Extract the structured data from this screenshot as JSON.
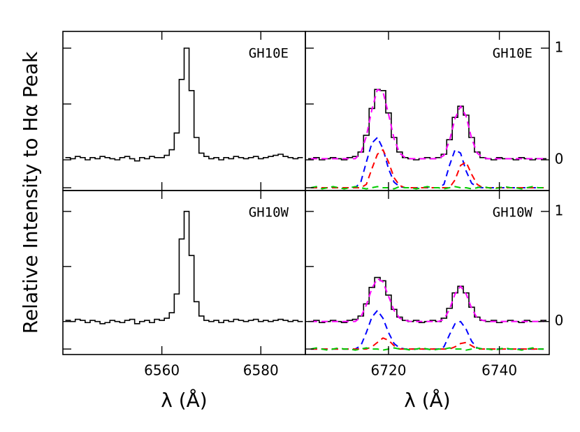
{
  "chart_data": [
    {
      "type": "line",
      "panel_label": "GH10E",
      "ylabel": "Relative Intensity to Hα Peak",
      "xlim": [
        6540,
        6589
      ],
      "xticks": [
        6560,
        6580
      ],
      "ylim": [
        -0.275,
        1.15
      ],
      "yticks": [
        -0.25,
        0,
        0.5,
        1
      ],
      "x": [
        6541,
        6542,
        6543,
        6544,
        6545,
        6546,
        6547,
        6548,
        6549,
        6550,
        6551,
        6552,
        6553,
        6554,
        6555,
        6556,
        6557,
        6558,
        6559,
        6560,
        6561,
        6562,
        6563,
        6564,
        6565,
        6566,
        6567,
        6568,
        6569,
        6570,
        6571,
        6572,
        6573,
        6574,
        6575,
        6576,
        6577,
        6578,
        6579,
        6580,
        6581,
        6582,
        6583,
        6584,
        6585,
        6586,
        6587,
        6588
      ],
      "series": [
        {
          "color": "#000000",
          "style": "step",
          "values": [
            0.02,
            0.01,
            0.03,
            0.02,
            0.0,
            0.02,
            0.01,
            0.03,
            0.02,
            0.01,
            0.0,
            0.02,
            0.03,
            0.01,
            -0.01,
            0.02,
            0.01,
            0.03,
            0.02,
            0.02,
            0.04,
            0.09,
            0.24,
            0.72,
            1.0,
            0.62,
            0.2,
            0.06,
            0.03,
            0.01,
            0.02,
            0.0,
            0.02,
            0.01,
            0.03,
            0.02,
            0.01,
            0.02,
            0.03,
            0.01,
            0.02,
            0.03,
            0.04,
            0.05,
            0.03,
            0.02,
            0.01,
            0.02
          ]
        }
      ]
    },
    {
      "type": "line",
      "panel_label": "GH10E",
      "xlim": [
        6705,
        6749
      ],
      "xticks": [
        6720,
        6740
      ],
      "ylim": [
        -0.275,
        1.15
      ],
      "yticks": [
        -0.25,
        0,
        0.5,
        1
      ],
      "y2lim": [
        -0.275,
        1.15
      ],
      "y2ticks": [
        0,
        1
      ],
      "x": [
        6706,
        6707,
        6708,
        6709,
        6710,
        6711,
        6712,
        6713,
        6714,
        6715,
        6716,
        6717,
        6718,
        6719,
        6720,
        6721,
        6722,
        6723,
        6724,
        6725,
        6726,
        6727,
        6728,
        6729,
        6730,
        6731,
        6732,
        6733,
        6734,
        6735,
        6736,
        6737,
        6738,
        6739,
        6740,
        6741,
        6742,
        6743,
        6744,
        6745,
        6746,
        6747,
        6748
      ],
      "series": [
        {
          "color": "#000000",
          "style": "step",
          "values": [
            0.01,
            0.02,
            0.0,
            0.01,
            0.02,
            0.01,
            0.0,
            0.02,
            0.03,
            0.07,
            0.22,
            0.46,
            0.63,
            0.62,
            0.42,
            0.2,
            0.07,
            0.02,
            0.01,
            0.0,
            0.01,
            0.02,
            0.01,
            0.02,
            0.05,
            0.18,
            0.38,
            0.48,
            0.4,
            0.2,
            0.07,
            0.02,
            0.01,
            0.0,
            0.02,
            0.01,
            0.01,
            0.0,
            0.02,
            0.01,
            0.0,
            0.01,
            0.01
          ]
        },
        {
          "color": "#ff00ff",
          "style": "dashed",
          "values": [
            0.01,
            0.01,
            0.01,
            0.01,
            0.01,
            0.01,
            0.01,
            0.01,
            0.01,
            0.06,
            0.21,
            0.45,
            0.63,
            0.61,
            0.41,
            0.19,
            0.06,
            0.02,
            0.01,
            0.01,
            0.01,
            0.01,
            0.01,
            0.01,
            0.04,
            0.17,
            0.37,
            0.48,
            0.39,
            0.19,
            0.06,
            0.02,
            0.01,
            0.01,
            0.01,
            0.01,
            0.01,
            0.01,
            0.01,
            0.01,
            0.01,
            0.01,
            0.01
          ]
        },
        {
          "color": "#0000ff",
          "style": "dashed",
          "values": [
            -0.25,
            -0.25,
            -0.25,
            -0.25,
            -0.25,
            -0.25,
            -0.25,
            -0.25,
            -0.25,
            -0.2,
            -0.02,
            0.15,
            0.2,
            0.1,
            -0.08,
            -0.2,
            -0.24,
            -0.25,
            -0.25,
            -0.25,
            -0.25,
            -0.25,
            -0.25,
            -0.25,
            -0.22,
            -0.05,
            0.09,
            0.06,
            -0.1,
            -0.21,
            -0.245,
            -0.25,
            -0.25,
            -0.25,
            -0.25,
            -0.25,
            -0.25,
            -0.25,
            -0.25,
            -0.25,
            -0.25,
            -0.25,
            -0.25
          ]
        },
        {
          "color": "#ff0000",
          "style": "dashed",
          "values": [
            -0.25,
            -0.25,
            -0.25,
            -0.25,
            -0.25,
            -0.25,
            -0.25,
            -0.25,
            -0.25,
            -0.25,
            -0.22,
            -0.08,
            0.05,
            0.09,
            -0.02,
            -0.16,
            -0.23,
            -0.25,
            -0.25,
            -0.25,
            -0.25,
            -0.25,
            -0.25,
            -0.25,
            -0.25,
            -0.25,
            -0.18,
            -0.05,
            -0.02,
            -0.13,
            -0.22,
            -0.25,
            -0.25,
            -0.25,
            -0.25,
            -0.25,
            -0.25,
            -0.25,
            -0.25,
            -0.25,
            -0.25,
            -0.25,
            -0.25
          ]
        },
        {
          "color": "#00cc00",
          "style": "dashed",
          "values": [
            -0.25,
            -0.24,
            -0.26,
            -0.25,
            -0.24,
            -0.25,
            -0.26,
            -0.25,
            -0.24,
            -0.25,
            -0.26,
            -0.25,
            -0.24,
            -0.25,
            -0.25,
            -0.26,
            -0.24,
            -0.25,
            -0.25,
            -0.26,
            -0.25,
            -0.24,
            -0.25,
            -0.25,
            -0.26,
            -0.25,
            -0.24,
            -0.25,
            -0.25,
            -0.26,
            -0.25,
            -0.24,
            -0.25,
            -0.26,
            -0.25,
            -0.24,
            -0.25,
            -0.25,
            -0.26,
            -0.25,
            -0.24,
            -0.25,
            -0.25
          ]
        }
      ]
    },
    {
      "type": "line",
      "panel_label": "GH10W",
      "xlabel": "λ (Å)",
      "xlim": [
        6540,
        6589
      ],
      "xticks": [
        6560,
        6580
      ],
      "ylim": [
        -0.3,
        1.19
      ],
      "yticks": [
        -0.25,
        0,
        0.5,
        1
      ],
      "x": [
        6541,
        6542,
        6543,
        6544,
        6545,
        6546,
        6547,
        6548,
        6549,
        6550,
        6551,
        6552,
        6553,
        6554,
        6555,
        6556,
        6557,
        6558,
        6559,
        6560,
        6561,
        6562,
        6563,
        6564,
        6565,
        6566,
        6567,
        6568,
        6569,
        6570,
        6571,
        6572,
        6573,
        6574,
        6575,
        6576,
        6577,
        6578,
        6579,
        6580,
        6581,
        6582,
        6583,
        6584,
        6585,
        6586,
        6587,
        6588
      ],
      "series": [
        {
          "color": "#000000",
          "style": "step",
          "values": [
            0.01,
            0.0,
            0.02,
            0.01,
            -0.01,
            0.01,
            0.0,
            -0.02,
            -0.01,
            0.01,
            0.0,
            -0.01,
            0.01,
            0.02,
            -0.02,
            0.0,
            0.01,
            -0.01,
            0.02,
            0.01,
            0.03,
            0.08,
            0.25,
            0.75,
            1.0,
            0.6,
            0.18,
            0.05,
            0.01,
            0.0,
            0.01,
            -0.01,
            0.01,
            0.0,
            0.02,
            0.01,
            0.0,
            0.01,
            0.02,
            0.0,
            0.01,
            0.0,
            0.01,
            0.02,
            0.01,
            0.0,
            0.01,
            0.0
          ]
        }
      ]
    },
    {
      "type": "line",
      "panel_label": "GH10W",
      "xlabel": "λ (Å)",
      "xlim": [
        6705,
        6749
      ],
      "xticks": [
        6720,
        6740
      ],
      "ylim": [
        -0.3,
        1.19
      ],
      "yticks": [
        -0.25,
        0,
        0.5,
        1
      ],
      "y2lim": [
        -0.3,
        1.19
      ],
      "y2ticks": [
        0,
        1
      ],
      "x": [
        6706,
        6707,
        6708,
        6709,
        6710,
        6711,
        6712,
        6713,
        6714,
        6715,
        6716,
        6717,
        6718,
        6719,
        6720,
        6721,
        6722,
        6723,
        6724,
        6725,
        6726,
        6727,
        6728,
        6729,
        6730,
        6731,
        6732,
        6733,
        6734,
        6735,
        6736,
        6737,
        6738,
        6739,
        6740,
        6741,
        6742,
        6743,
        6744,
        6745,
        6746,
        6747,
        6748
      ],
      "series": [
        {
          "color": "#000000",
          "style": "step",
          "values": [
            0.0,
            0.01,
            -0.01,
            0.0,
            0.01,
            0.0,
            -0.01,
            0.01,
            0.02,
            0.05,
            0.16,
            0.31,
            0.4,
            0.37,
            0.24,
            0.11,
            0.04,
            0.01,
            0.0,
            0.01,
            -0.01,
            0.0,
            0.01,
            0.0,
            0.03,
            0.12,
            0.26,
            0.32,
            0.26,
            0.13,
            0.04,
            0.01,
            0.0,
            0.01,
            -0.01,
            0.0,
            0.01,
            0.0,
            -0.01,
            0.01,
            0.0,
            0.0,
            0.01
          ]
        },
        {
          "color": "#ff00ff",
          "style": "dashed",
          "values": [
            0.0,
            0.0,
            0.0,
            0.0,
            0.0,
            0.0,
            0.0,
            0.0,
            0.0,
            0.04,
            0.15,
            0.3,
            0.39,
            0.36,
            0.23,
            0.1,
            0.03,
            0.01,
            0.0,
            0.0,
            0.0,
            0.0,
            0.0,
            0.0,
            0.02,
            0.11,
            0.25,
            0.32,
            0.25,
            0.12,
            0.03,
            0.01,
            0.0,
            0.0,
            0.0,
            0.0,
            0.0,
            0.0,
            0.0,
            0.0,
            0.0,
            0.0,
            0.0
          ]
        },
        {
          "color": "#0000ff",
          "style": "dashed",
          "values": [
            -0.25,
            -0.25,
            -0.25,
            -0.25,
            -0.25,
            -0.25,
            -0.25,
            -0.25,
            -0.25,
            -0.22,
            -0.1,
            0.04,
            0.1,
            0.03,
            -0.1,
            -0.2,
            -0.24,
            -0.25,
            -0.25,
            -0.25,
            -0.25,
            -0.25,
            -0.25,
            -0.25,
            -0.23,
            -0.12,
            -0.02,
            0.0,
            -0.07,
            -0.18,
            -0.24,
            -0.25,
            -0.25,
            -0.25,
            -0.25,
            -0.25,
            -0.25,
            -0.25,
            -0.25,
            -0.25,
            -0.25,
            -0.25,
            -0.25
          ]
        },
        {
          "color": "#ff0000",
          "style": "dashed",
          "values": [
            -0.25,
            -0.25,
            -0.25,
            -0.25,
            -0.25,
            -0.25,
            -0.25,
            -0.25,
            -0.25,
            -0.25,
            -0.25,
            -0.23,
            -0.19,
            -0.15,
            -0.17,
            -0.22,
            -0.25,
            -0.25,
            -0.25,
            -0.25,
            -0.25,
            -0.25,
            -0.25,
            -0.25,
            -0.25,
            -0.25,
            -0.23,
            -0.2,
            -0.19,
            -0.22,
            -0.25,
            -0.25,
            -0.25,
            -0.25,
            -0.25,
            -0.25,
            -0.25,
            -0.25,
            -0.25,
            -0.25,
            -0.25,
            -0.25,
            -0.25
          ]
        },
        {
          "color": "#00cc00",
          "style": "dashed",
          "values": [
            -0.25,
            -0.24,
            -0.25,
            -0.26,
            -0.25,
            -0.24,
            -0.25,
            -0.25,
            -0.26,
            -0.25,
            -0.24,
            -0.25,
            -0.25,
            -0.26,
            -0.25,
            -0.24,
            -0.25,
            -0.25,
            -0.26,
            -0.25,
            -0.24,
            -0.25,
            -0.26,
            -0.25,
            -0.25,
            -0.24,
            -0.25,
            -0.25,
            -0.26,
            -0.25,
            -0.24,
            -0.25,
            -0.25,
            -0.26,
            -0.25,
            -0.24,
            -0.25,
            -0.25,
            -0.26,
            -0.25,
            -0.24,
            -0.25,
            -0.25
          ]
        }
      ]
    }
  ]
}
